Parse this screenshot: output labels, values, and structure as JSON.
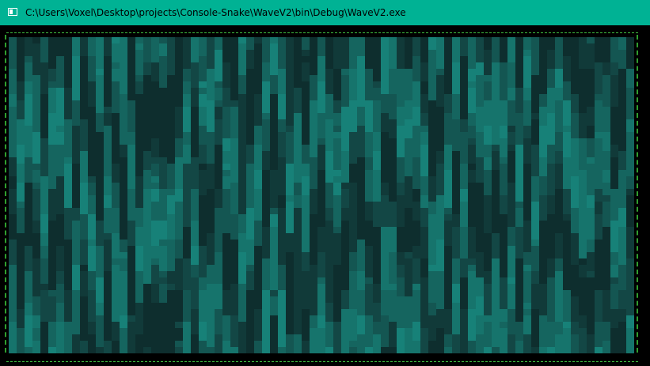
{
  "window": {
    "title": "C:\\Users\\Voxel\\Desktop\\projects\\Console-Snake\\WaveV2\\bin\\Debug\\WaveV2.exe",
    "titlebar_color": "#00b294",
    "icon": "console-window-icon"
  },
  "console": {
    "background": "#000000",
    "border_color": "#3fbf3f",
    "wave_palette": [
      "#0e2e2e",
      "#113a39",
      "#134745",
      "#145652",
      "#15655f",
      "#16746c",
      "#178178"
    ]
  }
}
